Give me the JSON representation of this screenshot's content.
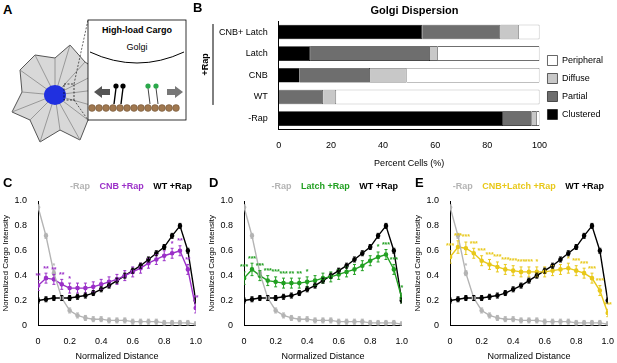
{
  "diagram": {
    "panel": "A",
    "title": "High-load Cargo",
    "label": "Golgi"
  },
  "chart_data": [
    {
      "type": "bar",
      "title": "Golgi Dispersion",
      "annotations": [
        "B"
      ],
      "orientation": "horizontal",
      "stacked": true,
      "categories": [
        "CNB+ Latch",
        "Latch",
        "CNB",
        "WT",
        "-Rap"
      ],
      "groups": [
        {
          "label": "+Rap",
          "categories": [
            "CNB+ Latch",
            "Latch",
            "CNB",
            "WT"
          ]
        }
      ],
      "series": [
        {
          "name": "Clustered",
          "color": "#000000",
          "values": [
            55,
            12,
            8,
            0,
            86
          ]
        },
        {
          "name": "Partial",
          "color": "#6e6e6e",
          "values": [
            30,
            46,
            27,
            17,
            11
          ]
        },
        {
          "name": "Diffuse",
          "color": "#c8c8c8",
          "values": [
            7,
            3,
            14,
            5,
            2
          ]
        },
        {
          "name": "Peripheral",
          "color": "#ffffff",
          "values": [
            8,
            39,
            51,
            78,
            1
          ]
        }
      ],
      "x_label": "Percent Cells (%)",
      "xlim": [
        0,
        100
      ],
      "xticks": [
        0,
        20,
        40,
        60,
        80,
        100
      ],
      "legend": "right",
      "grid": false
    },
    {
      "type": "line",
      "annotations": [
        "C"
      ],
      "x": [
        0,
        0.05,
        0.1,
        0.15,
        0.2,
        0.25,
        0.3,
        0.35,
        0.4,
        0.45,
        0.5,
        0.55,
        0.6,
        0.65,
        0.7,
        0.75,
        0.8,
        0.85,
        0.9,
        0.95,
        1
      ],
      "x_label": "Normalized Distance",
      "y_label": "Normalized Cargo Intensity",
      "xlim": [
        0,
        1
      ],
      "xticks": [
        0,
        0.2,
        0.4,
        0.6,
        0.8,
        {
          "value": 1,
          "label": "1.0"
        }
      ],
      "ylim": [
        0,
        1
      ],
      "yticks": [
        0,
        0.2,
        0.4,
        0.6,
        0.8,
        {
          "value": 1,
          "label": "1.0"
        }
      ],
      "legend": "top",
      "grid": false,
      "series": [
        {
          "name": "-Rap",
          "color": "#b4b4b4",
          "marker": "circle",
          "values": [
            0.95,
            0.72,
            0.42,
            0.22,
            0.12,
            0.08,
            0.06,
            0.05,
            0.05,
            0.04,
            0.04,
            0.04,
            0.03,
            0.03,
            0.03,
            0.03,
            0.02,
            0.02,
            0.02,
            0.02,
            0.01
          ],
          "errors": [
            0.02,
            0.02,
            0.02,
            0.02,
            0.02,
            0.02,
            0.02,
            0.02,
            0.02,
            0.02,
            0.02,
            0.02,
            0.02,
            0.02,
            0.02,
            0.02,
            0.02,
            0.02,
            0.02,
            0.02,
            0.02
          ],
          "significance": [
            null,
            null,
            "*",
            null,
            null,
            null,
            null,
            null,
            null,
            null,
            null,
            null,
            null,
            null,
            null,
            null,
            null,
            null,
            null,
            null,
            null
          ]
        },
        {
          "name": "CNB +Rap",
          "color": "#9b30c8",
          "marker": "circle",
          "values": [
            0.32,
            0.38,
            0.37,
            0.33,
            0.3,
            0.3,
            0.3,
            0.31,
            0.33,
            0.35,
            0.37,
            0.4,
            0.43,
            0.46,
            0.5,
            0.53,
            0.56,
            0.58,
            0.6,
            0.45,
            0.14
          ],
          "errors": [
            0.04,
            0.04,
            0.04,
            0.04,
            0.04,
            0.04,
            0.04,
            0.04,
            0.04,
            0.04,
            0.04,
            0.04,
            0.04,
            0.04,
            0.04,
            0.04,
            0.04,
            0.04,
            0.04,
            0.04,
            0.04
          ],
          "significance": [
            "**",
            "**",
            "**",
            "**",
            "*",
            null,
            null,
            null,
            null,
            null,
            null,
            null,
            null,
            null,
            null,
            null,
            null,
            "*",
            "**",
            "**",
            "**"
          ]
        },
        {
          "name": "WT +Rap",
          "color": "#000000",
          "marker": "circle",
          "values": [
            0.2,
            0.21,
            0.22,
            0.22,
            0.22,
            0.23,
            0.24,
            0.26,
            0.29,
            0.32,
            0.36,
            0.4,
            0.44,
            0.48,
            0.53,
            0.58,
            0.63,
            0.72,
            0.8,
            0.6,
            0.2
          ],
          "errors": [
            0.02,
            0.02,
            0.02,
            0.02,
            0.02,
            0.02,
            0.02,
            0.02,
            0.02,
            0.02,
            0.02,
            0.02,
            0.02,
            0.02,
            0.02,
            0.02,
            0.02,
            0.02,
            0.02,
            0.02,
            0.02
          ]
        }
      ]
    },
    {
      "type": "line",
      "annotations": [
        "D"
      ],
      "x": [
        0,
        0.05,
        0.1,
        0.15,
        0.2,
        0.25,
        0.3,
        0.35,
        0.4,
        0.45,
        0.5,
        0.55,
        0.6,
        0.65,
        0.7,
        0.75,
        0.8,
        0.85,
        0.9,
        0.95,
        1
      ],
      "x_label": "Normalized Distance",
      "y_label": "Normalized Cargo Intensity",
      "xlim": [
        0,
        1
      ],
      "xticks": [
        0,
        0.2,
        0.4,
        0.6,
        0.8,
        {
          "value": 1,
          "label": "1.0"
        }
      ],
      "ylim": [
        0,
        1
      ],
      "yticks": [
        0,
        0.2,
        0.4,
        0.6,
        0.8,
        {
          "value": 1,
          "label": "1.0"
        }
      ],
      "legend": "top",
      "grid": false,
      "series": [
        {
          "name": "-Rap",
          "color": "#b4b4b4",
          "marker": "circle",
          "values": [
            0.95,
            0.72,
            0.42,
            0.22,
            0.12,
            0.08,
            0.06,
            0.05,
            0.05,
            0.04,
            0.04,
            0.04,
            0.03,
            0.03,
            0.03,
            0.03,
            0.02,
            0.02,
            0.02,
            0.02,
            0.01
          ],
          "errors": [
            0.02,
            0.02,
            0.02,
            0.02,
            0.02,
            0.02,
            0.02,
            0.02,
            0.02,
            0.02,
            0.02,
            0.02,
            0.02,
            0.02,
            0.02,
            0.02,
            0.02,
            0.02,
            0.02,
            0.02,
            0.02
          ],
          "significance": [
            null,
            null,
            "*",
            null,
            null,
            null,
            null,
            null,
            null,
            null,
            null,
            null,
            null,
            null,
            null,
            null,
            null,
            null,
            null,
            null,
            null
          ]
        },
        {
          "name": "Latch +Rap",
          "color": "#22a022",
          "marker": "circle",
          "values": [
            0.38,
            0.45,
            0.4,
            0.36,
            0.35,
            0.34,
            0.34,
            0.34,
            0.35,
            0.36,
            0.38,
            0.39,
            0.41,
            0.43,
            0.45,
            0.48,
            0.52,
            0.55,
            0.57,
            0.45,
            0.22
          ],
          "errors": [
            0.05,
            0.05,
            0.04,
            0.04,
            0.04,
            0.04,
            0.04,
            0.04,
            0.04,
            0.04,
            0.04,
            0.04,
            0.04,
            0.04,
            0.04,
            0.04,
            0.04,
            0.04,
            0.04,
            0.04,
            0.04
          ],
          "significance": [
            "***",
            "***",
            "***",
            "***",
            "***",
            "***",
            "**",
            "**",
            "*",
            null,
            null,
            null,
            null,
            null,
            null,
            null,
            null,
            "*",
            "***",
            "***",
            "*"
          ]
        },
        {
          "name": "WT +Rap",
          "color": "#000000",
          "marker": "circle",
          "values": [
            0.2,
            0.21,
            0.22,
            0.22,
            0.22,
            0.23,
            0.24,
            0.26,
            0.29,
            0.32,
            0.36,
            0.4,
            0.44,
            0.48,
            0.53,
            0.58,
            0.63,
            0.72,
            0.8,
            0.6,
            0.2
          ],
          "errors": [
            0.02,
            0.02,
            0.02,
            0.02,
            0.02,
            0.02,
            0.02,
            0.02,
            0.02,
            0.02,
            0.02,
            0.02,
            0.02,
            0.02,
            0.02,
            0.02,
            0.02,
            0.02,
            0.02,
            0.02,
            0.02
          ]
        }
      ]
    },
    {
      "type": "line",
      "annotations": [
        "E"
      ],
      "x": [
        0,
        0.05,
        0.1,
        0.15,
        0.2,
        0.25,
        0.3,
        0.35,
        0.4,
        0.45,
        0.5,
        0.55,
        0.6,
        0.65,
        0.7,
        0.75,
        0.8,
        0.85,
        0.9,
        0.95,
        1
      ],
      "x_label": "Normalized Distance",
      "y_label": "Normalized Cargo Intensity",
      "xlim": [
        0,
        1
      ],
      "xticks": [
        0,
        0.2,
        0.4,
        0.6,
        0.8,
        {
          "value": 1,
          "label": "1.0"
        }
      ],
      "ylim": [
        0,
        1
      ],
      "yticks": [
        0,
        0.2,
        0.4,
        0.6,
        0.8,
        {
          "value": 1,
          "label": "1.0"
        }
      ],
      "legend": "top",
      "grid": false,
      "series": [
        {
          "name": "-Rap",
          "color": "#b4b4b4",
          "marker": "circle",
          "values": [
            0.95,
            0.72,
            0.42,
            0.22,
            0.12,
            0.08,
            0.06,
            0.05,
            0.05,
            0.04,
            0.04,
            0.04,
            0.03,
            0.03,
            0.03,
            0.03,
            0.02,
            0.02,
            0.02,
            0.02,
            0.01
          ],
          "errors": [
            0.02,
            0.02,
            0.02,
            0.02,
            0.02,
            0.02,
            0.02,
            0.02,
            0.02,
            0.02,
            0.02,
            0.02,
            0.02,
            0.02,
            0.02,
            0.02,
            0.02,
            0.02,
            0.02,
            0.02,
            0.02
          ],
          "significance": [
            null,
            null,
            "*",
            null,
            null,
            null,
            null,
            null,
            null,
            null,
            null,
            null,
            null,
            null,
            null,
            null,
            null,
            null,
            null,
            null,
            null
          ]
        },
        {
          "name": "CNB+Latch +Rap",
          "color": "#e8c81a",
          "marker": "circle",
          "values": [
            0.55,
            0.63,
            0.62,
            0.58,
            0.52,
            0.49,
            0.47,
            0.45,
            0.44,
            0.43,
            0.43,
            0.43,
            0.43,
            0.44,
            0.45,
            0.46,
            0.44,
            0.42,
            0.38,
            0.28,
            0.1
          ],
          "errors": [
            0.05,
            0.05,
            0.05,
            0.04,
            0.04,
            0.04,
            0.04,
            0.04,
            0.04,
            0.04,
            0.04,
            0.04,
            0.04,
            0.04,
            0.04,
            0.04,
            0.04,
            0.04,
            0.04,
            0.04,
            0.03
          ],
          "significance": [
            "***",
            "***",
            "***",
            "***",
            "***",
            "***",
            "***",
            "***",
            "***",
            "***",
            "***",
            "*",
            null,
            null,
            null,
            "*",
            "***",
            "***",
            "***",
            "***",
            "***"
          ]
        },
        {
          "name": "WT +Rap",
          "color": "#000000",
          "marker": "circle",
          "values": [
            0.2,
            0.21,
            0.22,
            0.22,
            0.22,
            0.23,
            0.24,
            0.26,
            0.29,
            0.32,
            0.36,
            0.4,
            0.44,
            0.48,
            0.53,
            0.58,
            0.63,
            0.72,
            0.8,
            0.6,
            0.2
          ],
          "errors": [
            0.02,
            0.02,
            0.02,
            0.02,
            0.02,
            0.02,
            0.02,
            0.02,
            0.02,
            0.02,
            0.02,
            0.02,
            0.02,
            0.02,
            0.02,
            0.02,
            0.02,
            0.02,
            0.02,
            0.02,
            0.02
          ]
        }
      ]
    }
  ]
}
